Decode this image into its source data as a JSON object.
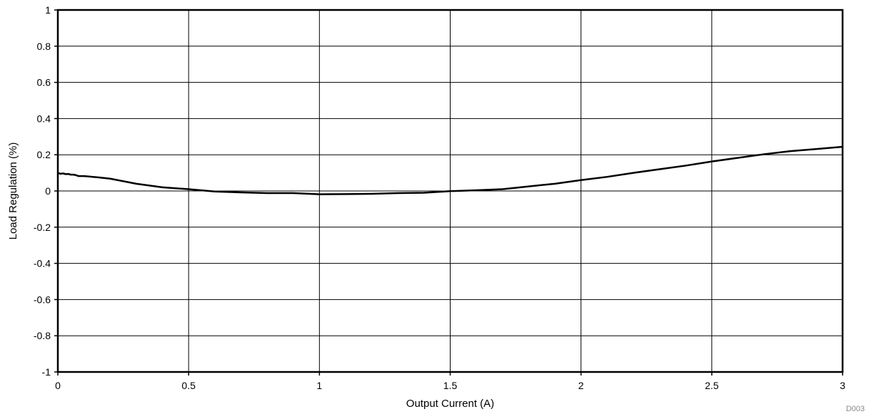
{
  "chart_data": {
    "type": "line",
    "title": "",
    "xlabel": "Output Current (A)",
    "ylabel": "Load Regulation (%)",
    "xlim": [
      0,
      3
    ],
    "ylim": [
      -1,
      1
    ],
    "xticks": [
      0,
      0.5,
      1,
      1.5,
      2,
      2.5,
      3
    ],
    "xtick_labels": [
      "0",
      "0.5",
      "1",
      "1.5",
      "2",
      "2.5",
      "3"
    ],
    "yticks": [
      1,
      0.8,
      0.6,
      0.4,
      0.2,
      0,
      -0.2,
      -0.4,
      -0.6,
      -0.8,
      -1
    ],
    "ytick_labels": [
      "1",
      "0.8",
      "0.6",
      "0.4",
      "0.2",
      "0",
      "-0.2",
      "-0.4",
      "-0.6",
      "-0.8",
      "-1"
    ],
    "grid": true,
    "series": [
      {
        "color": "#000000",
        "x": [
          0,
          0.01,
          0.02,
          0.03,
          0.04,
          0.05,
          0.06,
          0.07,
          0.08,
          0.1,
          0.15,
          0.2,
          0.3,
          0.4,
          0.5,
          0.6,
          0.7,
          0.8,
          0.9,
          1.0,
          1.1,
          1.2,
          1.3,
          1.4,
          1.5,
          1.6,
          1.7,
          1.8,
          1.9,
          2.0,
          2.1,
          2.2,
          2.3,
          2.4,
          2.5,
          2.6,
          2.7,
          2.8,
          2.9,
          3.0
        ],
        "y": [
          0.1,
          0.095,
          0.097,
          0.093,
          0.094,
          0.09,
          0.09,
          0.087,
          0.082,
          0.082,
          0.076,
          0.068,
          0.04,
          0.02,
          0.01,
          -0.003,
          -0.008,
          -0.012,
          -0.012,
          -0.018,
          -0.017,
          -0.016,
          -0.012,
          -0.01,
          -0.001,
          0.004,
          0.01,
          0.025,
          0.04,
          0.06,
          0.078,
          0.1,
          0.12,
          0.14,
          0.163,
          0.183,
          0.203,
          0.22,
          0.232,
          0.244
        ]
      }
    ]
  },
  "doc_id": "D003"
}
